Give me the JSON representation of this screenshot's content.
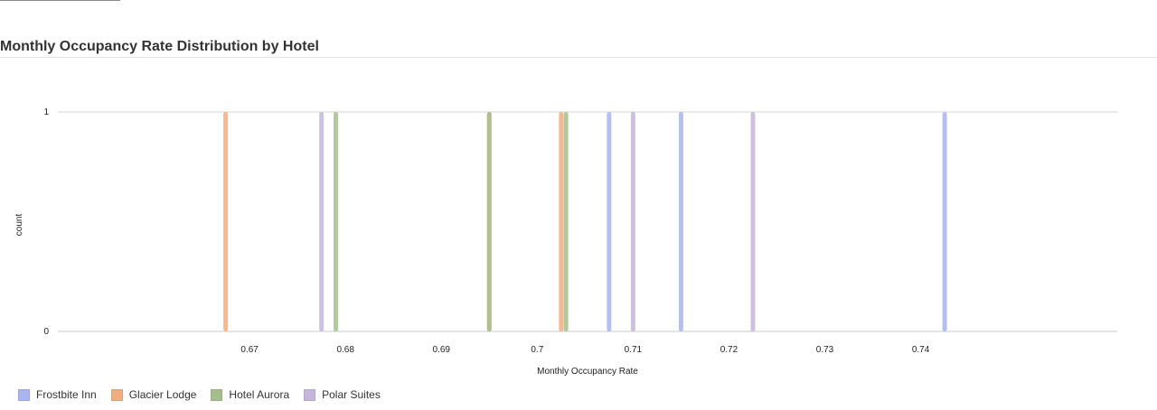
{
  "chart_data": {
    "type": "histogram",
    "title": "Monthly Occupancy Rate Distribution by Hotel",
    "xlabel": "Monthly Occupancy Rate",
    "ylabel": "count",
    "xlim": [
      0.65,
      0.7605
    ],
    "ylim": [
      0,
      1
    ],
    "x_ticks": [
      "0.67",
      "0.68",
      "0.69",
      "0.7",
      "0.71",
      "0.72",
      "0.73",
      "0.74"
    ],
    "y_ticks": [
      "0",
      "1"
    ],
    "legend_position": "bottom-left",
    "series": [
      {
        "name": "Frostbite Inn",
        "color": "#aab4f0",
        "values": [
          0.7075,
          0.715,
          0.7425
        ]
      },
      {
        "name": "Glacier Lodge",
        "color": "#f5aa80",
        "values": [
          0.6675,
          0.695,
          0.7025
        ]
      },
      {
        "name": "Hotel Aurora",
        "color": "#a4bf8c",
        "values": [
          0.679,
          0.695,
          0.703
        ]
      },
      {
        "name": "Polar Suites",
        "color": "#c6b6da",
        "values": [
          0.6775,
          0.71,
          0.7225
        ]
      }
    ]
  }
}
